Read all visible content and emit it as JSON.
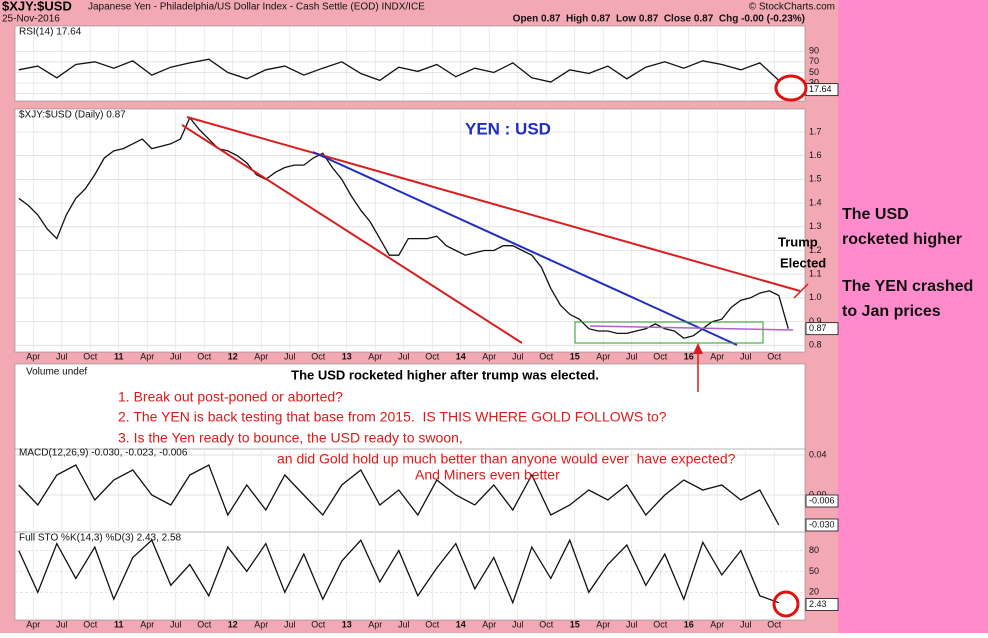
{
  "header": {
    "symbol": "$XJY:$USD",
    "name": "Japanese Yen - Philadelphia/US Dollar Index - Cash Settle (EOD) INDX/ICE",
    "credit": "© StockCharts.com",
    "date": "25-Nov-2016",
    "quote": "Open 0.87  High 0.87  Low 0.87  Close 0.87  Chg -0.00 (-0.23%)"
  },
  "chart_data": [
    {
      "type": "line",
      "title": "$XJY:$USD (Daily) 0.87",
      "color": "#111111",
      "grid": true,
      "x": [
        "2010-02",
        "2010-03",
        "2010-04",
        "2010-05",
        "2010-06",
        "2010-07",
        "2010-08",
        "2010-09",
        "2010-10",
        "2010-11",
        "2010-12",
        "2011-01",
        "2011-02",
        "2011-03",
        "2011-04",
        "2011-05",
        "2011-06",
        "2011-07",
        "2011-08",
        "2011-09",
        "2011-10",
        "2011-11",
        "2011-12",
        "2012-01",
        "2012-02",
        "2012-03",
        "2012-04",
        "2012-05",
        "2012-06",
        "2012-07",
        "2012-08",
        "2012-09",
        "2012-10",
        "2012-11",
        "2012-12",
        "2013-01",
        "2013-02",
        "2013-03",
        "2013-04",
        "2013-05",
        "2013-06",
        "2013-07",
        "2013-08",
        "2013-09",
        "2013-10",
        "2013-11",
        "2013-12",
        "2014-01",
        "2014-02",
        "2014-03",
        "2014-04",
        "2014-05",
        "2014-06",
        "2014-07",
        "2014-08",
        "2014-09",
        "2014-10",
        "2014-11",
        "2014-12",
        "2015-01",
        "2015-02",
        "2015-03",
        "2015-04",
        "2015-05",
        "2015-06",
        "2015-07",
        "2015-08",
        "2015-09",
        "2015-10",
        "2015-11",
        "2015-12",
        "2016-01",
        "2016-02",
        "2016-03",
        "2016-04",
        "2016-05",
        "2016-06",
        "2016-07",
        "2016-08",
        "2016-09",
        "2016-10",
        "2016-11"
      ],
      "values": [
        1.42,
        1.39,
        1.35,
        1.29,
        1.25,
        1.35,
        1.42,
        1.46,
        1.52,
        1.59,
        1.62,
        1.63,
        1.65,
        1.67,
        1.63,
        1.64,
        1.65,
        1.67,
        1.76,
        1.71,
        1.67,
        1.63,
        1.62,
        1.6,
        1.57,
        1.52,
        1.5,
        1.53,
        1.55,
        1.56,
        1.56,
        1.59,
        1.61,
        1.55,
        1.5,
        1.43,
        1.37,
        1.32,
        1.25,
        1.18,
        1.18,
        1.25,
        1.25,
        1.25,
        1.26,
        1.22,
        1.2,
        1.18,
        1.19,
        1.2,
        1.2,
        1.22,
        1.22,
        1.2,
        1.18,
        1.13,
        1.04,
        0.97,
        0.93,
        0.91,
        0.87,
        0.86,
        0.86,
        0.85,
        0.85,
        0.86,
        0.87,
        0.89,
        0.87,
        0.86,
        0.83,
        0.84,
        0.87,
        0.9,
        0.91,
        0.96,
        0.99,
        1.0,
        1.02,
        1.03,
        1.01,
        0.87
      ],
      "xlim": [
        2010.09,
        2017.02
      ],
      "xticks": [
        {
          "value": 2010.25,
          "label": "Apr"
        },
        {
          "value": 2010.5,
          "label": "Jul"
        },
        {
          "value": 2010.75,
          "label": "Oct"
        },
        {
          "value": 2011,
          "label": "11"
        },
        {
          "value": 2011.25,
          "label": "Apr"
        },
        {
          "value": 2011.5,
          "label": "Jul"
        },
        {
          "value": 2011.75,
          "label": "Oct"
        },
        {
          "value": 2012,
          "label": "12"
        },
        {
          "value": 2012.25,
          "label": "Apr"
        },
        {
          "value": 2012.5,
          "label": "Jul"
        },
        {
          "value": 2012.75,
          "label": "Oct"
        },
        {
          "value": 2013,
          "label": "13"
        },
        {
          "value": 2013.25,
          "label": "Apr"
        },
        {
          "value": 2013.5,
          "label": "Jul"
        },
        {
          "value": 2013.75,
          "label": "Oct"
        },
        {
          "value": 2014,
          "label": "14"
        },
        {
          "value": 2014.25,
          "label": "Apr"
        },
        {
          "value": 2014.5,
          "label": "Jul"
        },
        {
          "value": 2014.75,
          "label": "Oct"
        },
        {
          "value": 2015,
          "label": "15"
        },
        {
          "value": 2015.25,
          "label": "Apr"
        },
        {
          "value": 2015.5,
          "label": "Jul"
        },
        {
          "value": 2015.75,
          "label": "Oct"
        },
        {
          "value": 2016,
          "label": "16"
        },
        {
          "value": 2016.25,
          "label": "Apr"
        },
        {
          "value": 2016.5,
          "label": "Jul"
        },
        {
          "value": 2016.75,
          "label": "Oct"
        }
      ],
      "ylim": [
        0.78,
        1.78
      ],
      "yticks": [
        1.7,
        1.6,
        1.5,
        1.4,
        1.3,
        1.2,
        1.1,
        {
          "value": 1,
          "label": "1.0"
        },
        0.9,
        0.8
      ],
      "value_boxes": [
        0.87
      ]
    },
    {
      "type": "line",
      "title": "RSI(14) 17.64",
      "color": "#111111",
      "grid": true,
      "x": [
        "2010-02",
        "2010-04",
        "2010-06",
        "2010-08",
        "2010-10",
        "2010-12",
        "2011-02",
        "2011-04",
        "2011-06",
        "2011-08",
        "2011-10",
        "2011-12",
        "2012-02",
        "2012-04",
        "2012-06",
        "2012-08",
        "2012-10",
        "2012-12",
        "2013-02",
        "2013-04",
        "2013-06",
        "2013-08",
        "2013-10",
        "2013-12",
        "2014-02",
        "2014-04",
        "2014-06",
        "2014-08",
        "2014-10",
        "2014-12",
        "2015-02",
        "2015-04",
        "2015-06",
        "2015-08",
        "2015-10",
        "2015-12",
        "2016-02",
        "2016-04",
        "2016-06",
        "2016-08",
        "2016-10"
      ],
      "values": [
        55,
        62,
        40,
        65,
        70,
        58,
        72,
        45,
        60,
        68,
        75,
        50,
        38,
        55,
        62,
        45,
        58,
        70,
        48,
        35,
        60,
        52,
        65,
        42,
        58,
        50,
        68,
        40,
        32,
        55,
        48,
        62,
        38,
        60,
        70,
        58,
        72,
        65,
        55,
        68,
        35
      ],
      "xlim": [
        2010.09,
        2017.02
      ],
      "ylim": [
        0,
        130
      ],
      "yticks": [
        90,
        70,
        50,
        30,
        10
      ],
      "value_boxes": [
        17.64
      ]
    },
    {
      "type": "line",
      "title": "MACD(12,26,9) -0.030, -0.023, -0.006",
      "color": "#111111",
      "grid": true,
      "x": [
        "2010-02",
        "2010-04",
        "2010-06",
        "2010-08",
        "2010-10",
        "2010-12",
        "2011-02",
        "2011-04",
        "2011-06",
        "2011-08",
        "2011-10",
        "2011-12",
        "2012-02",
        "2012-04",
        "2012-06",
        "2012-08",
        "2012-10",
        "2012-12",
        "2013-02",
        "2013-04",
        "2013-06",
        "2013-08",
        "2013-10",
        "2013-12",
        "2014-02",
        "2014-04",
        "2014-06",
        "2014-08",
        "2014-10",
        "2014-12",
        "2015-02",
        "2015-04",
        "2015-06",
        "2015-08",
        "2015-10",
        "2015-12",
        "2016-02",
        "2016-04",
        "2016-06",
        "2016-08",
        "2016-10"
      ],
      "values": [
        0.01,
        -0.01,
        0.02,
        0.03,
        -0.005,
        0.015,
        0.025,
        0.0,
        -0.01,
        0.02,
        0.03,
        -0.02,
        0.01,
        -0.015,
        0.02,
        0.0,
        -0.02,
        0.01,
        0.025,
        -0.01,
        0.005,
        -0.02,
        0.015,
        0.0,
        -0.01,
        0.01,
        -0.015,
        0.02,
        -0.02,
        -0.01,
        0.005,
        -0.005,
        0.01,
        -0.02,
        0.0,
        0.015,
        0.005,
        0.01,
        -0.005,
        0.005,
        -0.03
      ],
      "xlim": [
        2010.09,
        2017.02
      ],
      "ylim": [
        -0.036,
        0.044
      ],
      "yticks": [
        {
          "value": 0.04,
          "label": "0.04"
        },
        {
          "value": 0,
          "label": "0.00"
        }
      ],
      "value_boxes": [
        -0.006,
        {
          "value": -0.03,
          "label": "-0.030"
        }
      ]
    },
    {
      "type": "line",
      "title": "Full STO %K(14,3) %D(3) 2.43, 2.58",
      "color": "#111111",
      "grid": true,
      "x": [
        "2010-02",
        "2010-04",
        "2010-06",
        "2010-08",
        "2010-10",
        "2010-12",
        "2011-02",
        "2011-04",
        "2011-06",
        "2011-08",
        "2011-10",
        "2011-12",
        "2012-02",
        "2012-04",
        "2012-06",
        "2012-08",
        "2012-10",
        "2012-12",
        "2013-02",
        "2013-04",
        "2013-06",
        "2013-08",
        "2013-10",
        "2013-12",
        "2014-02",
        "2014-04",
        "2014-06",
        "2014-08",
        "2014-10",
        "2014-12",
        "2015-02",
        "2015-04",
        "2015-06",
        "2015-08",
        "2015-10",
        "2015-12",
        "2016-02",
        "2016-04",
        "2016-06",
        "2016-08",
        "2016-10"
      ],
      "values": [
        80,
        20,
        90,
        40,
        85,
        10,
        70,
        95,
        30,
        60,
        15,
        85,
        50,
        90,
        20,
        75,
        10,
        65,
        95,
        35,
        80,
        15,
        55,
        90,
        25,
        70,
        5,
        85,
        40,
        95,
        20,
        60,
        88,
        30,
        75,
        10,
        92,
        45,
        80,
        15,
        5
      ],
      "xlim": [
        2010.09,
        2017.02
      ],
      "ylim": [
        -17,
        101
      ],
      "yticks": [
        80,
        50,
        20
      ],
      "value_boxes": [
        2.43
      ]
    }
  ],
  "volume": {
    "label": "Volume undef"
  },
  "annotations": {
    "chart_title": "YEN : USD",
    "trump": [
      "Trump",
      "Elected"
    ],
    "caption": "The USD rocketed higher after trump was elected.",
    "notes": [
      "1. Break out post-poned or aborted?",
      "2. The YEN is back testing that base from 2015.  IS THIS WHERE GOLD FOLLOWS to?",
      "3. Is the Yen ready to bounce, the USD ready to swoon,",
      "an did Gold hold up much better than anyone would ever  have expected?",
      "And Miners even better"
    ],
    "side": [
      "The USD",
      "rocketed higher",
      "The YEN crashed",
      "to Jan prices"
    ]
  }
}
